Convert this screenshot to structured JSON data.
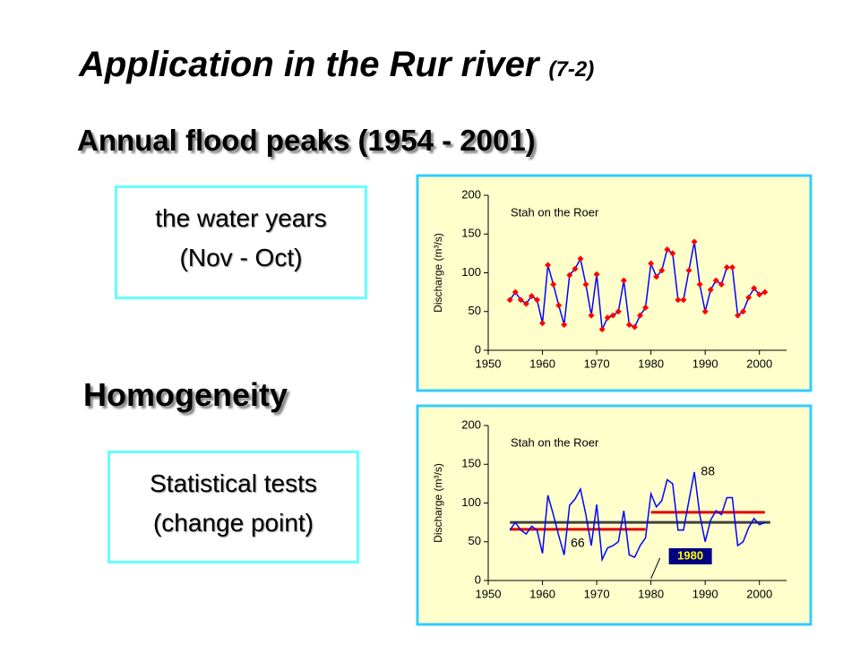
{
  "slide": {
    "title": "Application in the Rur river",
    "title_tag": "(7-2)",
    "subtitle": "Annual flood peaks (1954 - 2001)",
    "note_1": [
      "the water years",
      "(Nov - Oct)"
    ],
    "heading_2": "Homogeneity",
    "note_2": [
      "Statistical tests",
      "(change point)"
    ]
  },
  "chart_data": [
    {
      "type": "line",
      "title": "Stah on the Roer",
      "ylabel": "Discharge (m³/s)",
      "x": [
        1954,
        1955,
        1956,
        1957,
        1958,
        1959,
        1960,
        1961,
        1962,
        1963,
        1964,
        1965,
        1966,
        1967,
        1968,
        1969,
        1970,
        1971,
        1972,
        1973,
        1974,
        1975,
        1976,
        1977,
        1978,
        1979,
        1980,
        1981,
        1982,
        1983,
        1984,
        1985,
        1986,
        1987,
        1988,
        1989,
        1990,
        1991,
        1992,
        1993,
        1994,
        1995,
        1996,
        1997,
        1998,
        1999,
        2000,
        2001
      ],
      "series": [
        {
          "color": "#0000ff",
          "marker_color": "#ff0000",
          "values": [
            65,
            75,
            65,
            60,
            70,
            65,
            35,
            110,
            85,
            58,
            33,
            97,
            105,
            118,
            85,
            45,
            98,
            27,
            42,
            45,
            50,
            90,
            33,
            30,
            45,
            55,
            112,
            95,
            103,
            130,
            125,
            65,
            65,
            103,
            140,
            85,
            50,
            78,
            90,
            85,
            107,
            107,
            45,
            50,
            68,
            80,
            72,
            75
          ]
        }
      ],
      "xlim": [
        1950,
        2005
      ],
      "xticks": [
        1950,
        1960,
        1970,
        1980,
        1990,
        2000
      ],
      "ylim": [
        0,
        200
      ],
      "yticks": [
        0,
        50,
        100,
        150,
        200
      ]
    },
    {
      "type": "line",
      "title": "Stah on the Roer",
      "ylabel": "Discharge (m³/s)",
      "x": [
        1954,
        1955,
        1956,
        1957,
        1958,
        1959,
        1960,
        1961,
        1962,
        1963,
        1964,
        1965,
        1966,
        1967,
        1968,
        1969,
        1970,
        1971,
        1972,
        1973,
        1974,
        1975,
        1976,
        1977,
        1978,
        1979,
        1980,
        1981,
        1982,
        1983,
        1984,
        1985,
        1986,
        1987,
        1988,
        1989,
        1990,
        1991,
        1992,
        1993,
        1994,
        1995,
        1996,
        1997,
        1998,
        1999,
        2000,
        2001
      ],
      "series": [
        {
          "color": "#0000ff",
          "values": [
            65,
            75,
            65,
            60,
            70,
            65,
            35,
            110,
            85,
            58,
            33,
            97,
            105,
            118,
            85,
            45,
            98,
            27,
            42,
            45,
            50,
            90,
            33,
            30,
            45,
            55,
            112,
            95,
            103,
            130,
            125,
            65,
            65,
            103,
            140,
            85,
            50,
            78,
            90,
            85,
            107,
            107,
            45,
            50,
            68,
            80,
            72,
            75
          ]
        }
      ],
      "lines": [
        {
          "value": 75,
          "x": [
            1954,
            2002
          ],
          "color": "#404040"
        },
        {
          "value": 66,
          "x": [
            1954,
            1979
          ],
          "color": "#e00000"
        },
        {
          "value": 88,
          "x": [
            1980,
            2001
          ],
          "color": "#e00000"
        }
      ],
      "change_point": 1980,
      "xlim": [
        1950,
        2005
      ],
      "xticks": [
        1950,
        1960,
        1970,
        1980,
        1990,
        2000
      ],
      "ylim": [
        0,
        200
      ],
      "yticks": [
        0,
        50,
        100,
        150,
        200
      ]
    }
  ]
}
